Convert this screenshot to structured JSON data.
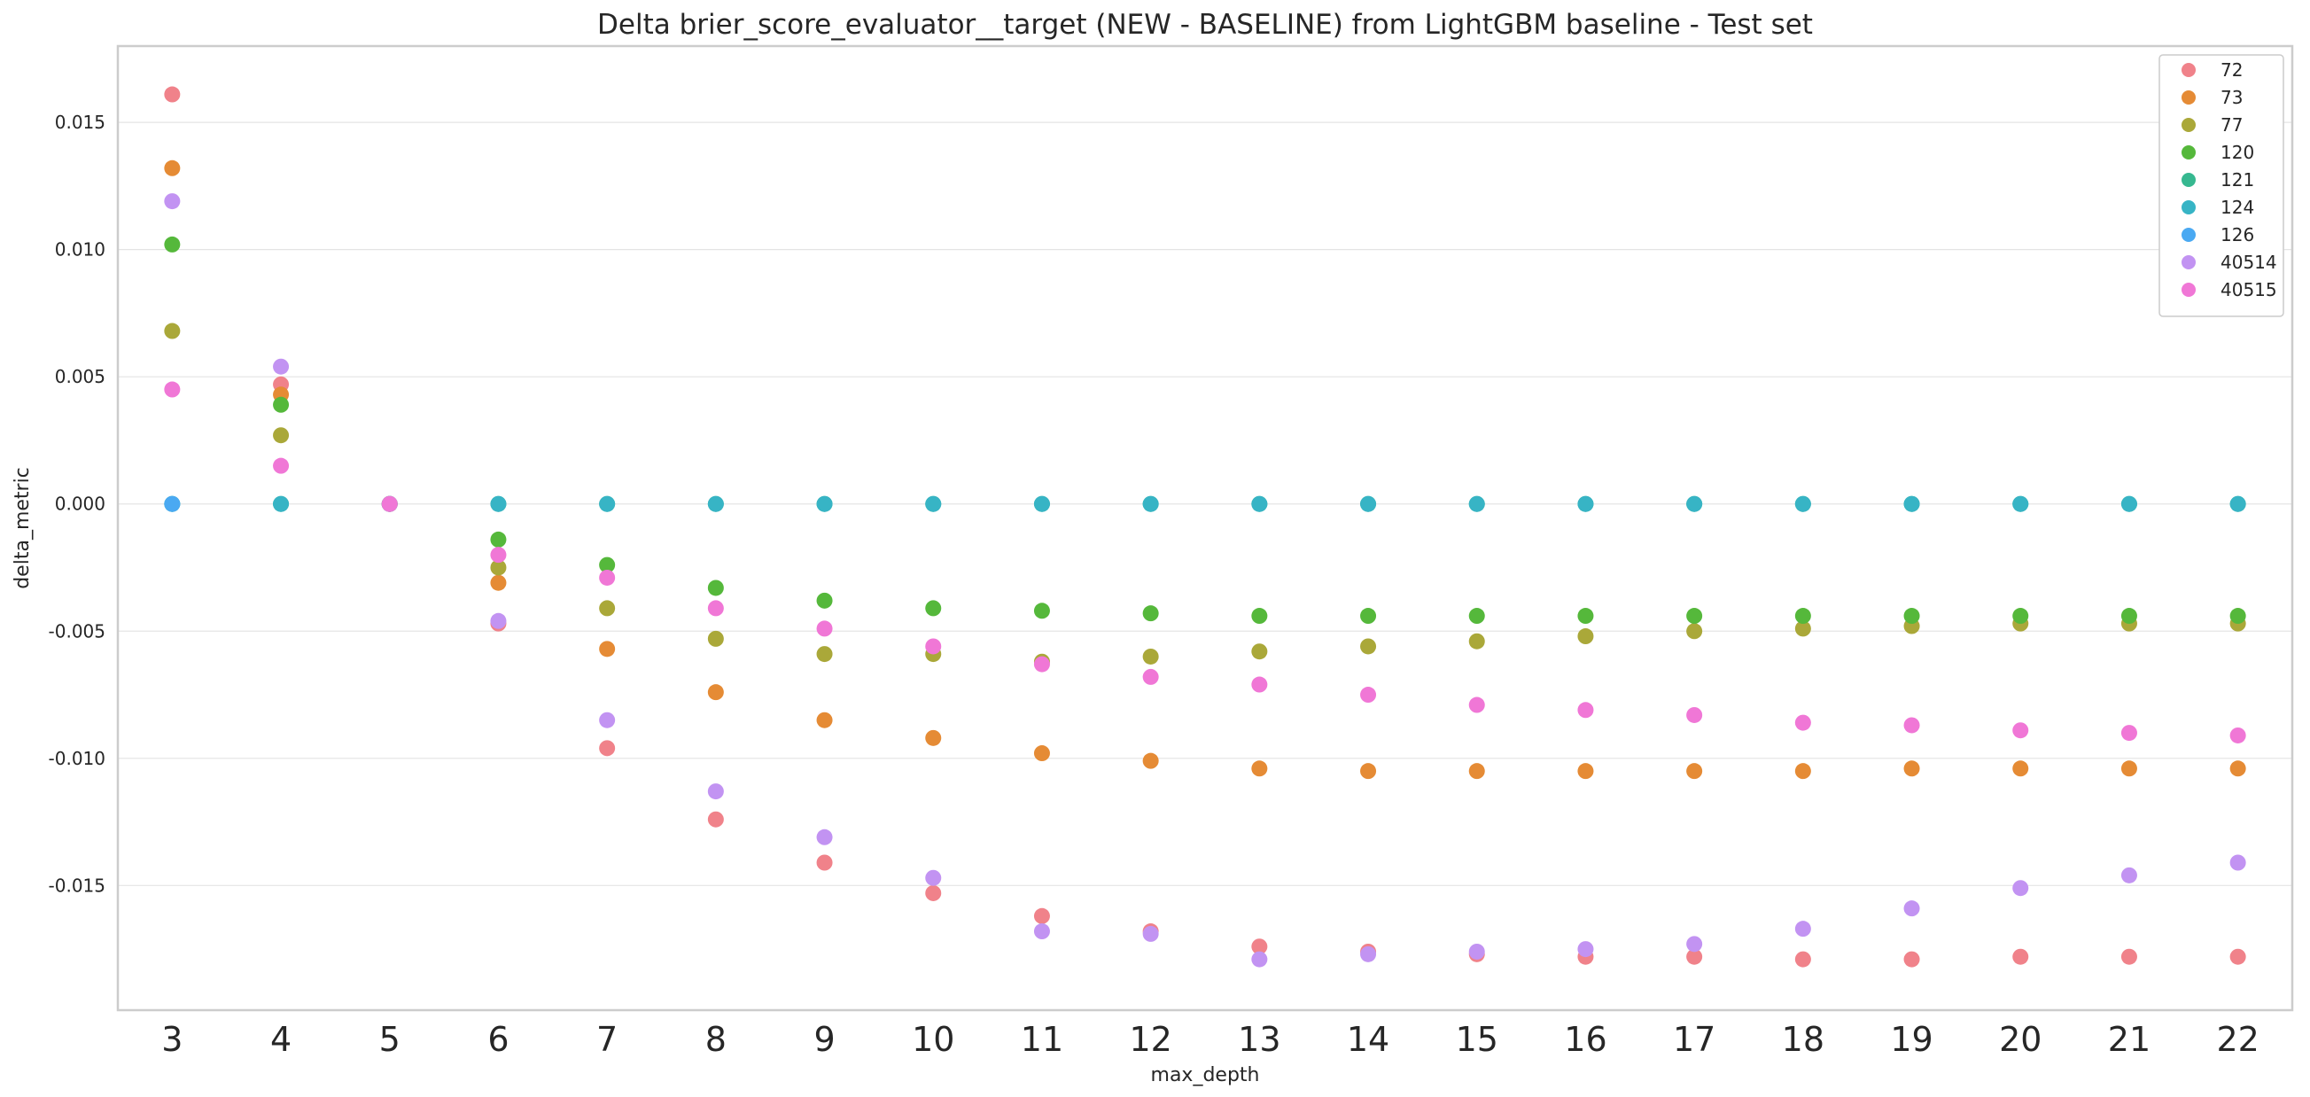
{
  "chart_data": {
    "type": "scatter",
    "title": "Delta brier_score_evaluator__target (NEW - BASELINE) from LightGBM baseline - Test set",
    "xlabel": "max_depth",
    "ylabel": "delta_metric",
    "categories": [
      "3",
      "4",
      "5",
      "6",
      "7",
      "8",
      "9",
      "10",
      "11",
      "12",
      "13",
      "14",
      "15",
      "16",
      "17",
      "18",
      "19",
      "20",
      "21",
      "22"
    ],
    "ylim": [
      -0.0199,
      0.018
    ],
    "yticks": [
      "0.015",
      "0.010",
      "0.005",
      "0.000",
      "-0.005",
      "-0.010",
      "-0.015"
    ],
    "ytick_values": [
      0.015,
      0.01,
      0.005,
      0.0,
      -0.005,
      -0.01,
      -0.015
    ],
    "grid": "horizontal",
    "legend_position": "top-right",
    "series": [
      {
        "name": "72",
        "color": "#f0828a",
        "values": [
          0.0161,
          0.0047,
          0.0,
          -0.0047,
          -0.0096,
          -0.0124,
          -0.0141,
          -0.0153,
          -0.0162,
          -0.0168,
          -0.0174,
          -0.0176,
          -0.0177,
          -0.0178,
          -0.0178,
          -0.0179,
          -0.0179,
          -0.0178,
          -0.0178,
          -0.0178
        ]
      },
      {
        "name": "73",
        "color": "#e58b35",
        "values": [
          0.0132,
          0.0043,
          0.0,
          -0.0031,
          -0.0057,
          -0.0074,
          -0.0085,
          -0.0092,
          -0.0098,
          -0.0101,
          -0.0104,
          -0.0105,
          -0.0105,
          -0.0105,
          -0.0105,
          -0.0105,
          -0.0104,
          -0.0104,
          -0.0104,
          -0.0104
        ]
      },
      {
        "name": "77",
        "color": "#aaa839",
        "values": [
          0.0068,
          0.0027,
          0.0,
          -0.0025,
          -0.0041,
          -0.0053,
          -0.0059,
          -0.0059,
          -0.0062,
          -0.006,
          -0.0058,
          -0.0056,
          -0.0054,
          -0.0052,
          -0.005,
          -0.0049,
          -0.0048,
          -0.0047,
          -0.0047,
          -0.0047
        ]
      },
      {
        "name": "120",
        "color": "#55b83b",
        "values": [
          0.0102,
          0.0039,
          0.0,
          -0.0014,
          -0.0024,
          -0.0033,
          -0.0038,
          -0.0041,
          -0.0042,
          -0.0043,
          -0.0044,
          -0.0044,
          -0.0044,
          -0.0044,
          -0.0044,
          -0.0044,
          -0.0044,
          -0.0044,
          -0.0044,
          -0.0044
        ]
      },
      {
        "name": "121",
        "color": "#36b890",
        "values": [
          0.0,
          0.0,
          0.0,
          0.0,
          0.0,
          0.0,
          0.0,
          0.0,
          0.0,
          0.0,
          0.0,
          0.0,
          0.0,
          0.0,
          0.0,
          0.0,
          0.0,
          0.0,
          0.0,
          0.0
        ]
      },
      {
        "name": "124",
        "color": "#37b4c5",
        "values": [
          0.0,
          0.0,
          0.0,
          0.0,
          0.0,
          0.0,
          0.0,
          0.0,
          0.0,
          0.0,
          0.0,
          0.0,
          0.0,
          0.0,
          0.0,
          0.0,
          0.0,
          0.0,
          0.0,
          0.0
        ]
      },
      {
        "name": "126",
        "color": "#4aa9f2",
        "values": [
          0.0,
          null,
          null,
          null,
          null,
          null,
          null,
          null,
          null,
          null,
          null,
          null,
          null,
          null,
          null,
          null,
          null,
          null,
          null,
          null
        ]
      },
      {
        "name": "40514",
        "color": "#c293f2",
        "values": [
          0.0119,
          0.0054,
          0.0,
          -0.0046,
          -0.0085,
          -0.0113,
          -0.0131,
          -0.0147,
          -0.0168,
          -0.0169,
          -0.0179,
          -0.0177,
          -0.0176,
          -0.0175,
          -0.0173,
          -0.0167,
          -0.0159,
          -0.0151,
          -0.0146,
          -0.0141
        ]
      },
      {
        "name": "40515",
        "color": "#f077d6",
        "values": [
          0.0045,
          0.0015,
          0.0,
          -0.002,
          -0.0029,
          -0.0041,
          -0.0049,
          -0.0056,
          -0.0063,
          -0.0068,
          -0.0071,
          -0.0075,
          -0.0079,
          -0.0081,
          -0.0083,
          -0.0086,
          -0.0087,
          -0.0089,
          -0.009,
          -0.0091
        ]
      }
    ]
  }
}
